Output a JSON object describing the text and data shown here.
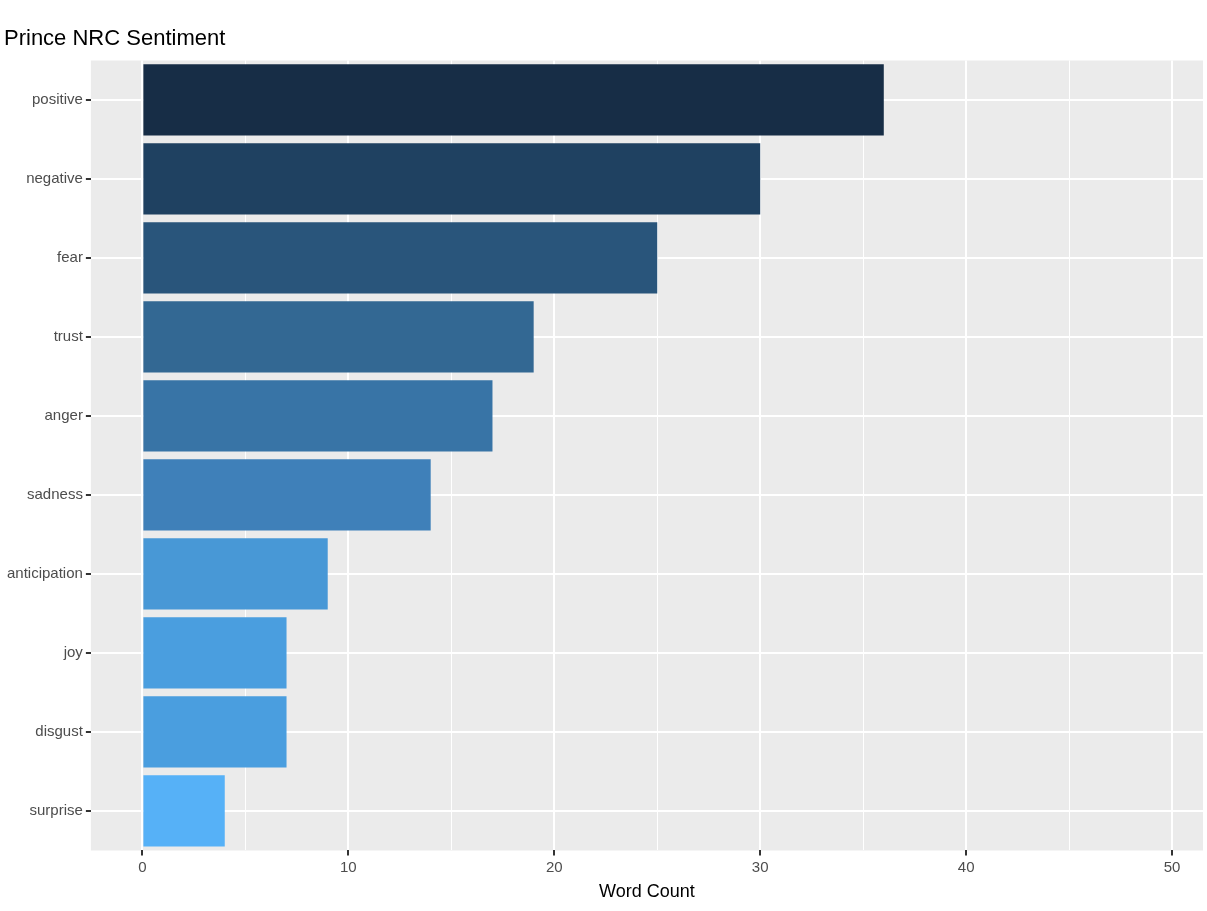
{
  "chart_data": {
    "type": "bar",
    "orientation": "horizontal",
    "title": "Prince NRC Sentiment",
    "xlabel": "Word Count",
    "categories": [
      "positive",
      "negative",
      "fear",
      "trust",
      "anger",
      "sadness",
      "anticipation",
      "joy",
      "disgust",
      "surprise"
    ],
    "values": [
      36,
      30,
      25,
      19,
      17,
      14,
      9,
      7,
      7,
      4
    ],
    "colors": [
      "#172d46",
      "#1f4161",
      "#29557b",
      "#336893",
      "#3874a6",
      "#3f80b9",
      "#4898d6",
      "#4a9edf",
      "#4a9edf",
      "#56b1f7"
    ],
    "xlim": [
      -2.5,
      51.5
    ],
    "xticks": [
      0,
      {
        "value": 5,
        "label": null
      },
      10,
      {
        "value": 15,
        "label": null
      },
      20,
      {
        "value": 25,
        "label": null
      },
      30,
      {
        "value": 35,
        "label": null
      },
      40,
      {
        "value": 45,
        "label": null
      },
      50
    ],
    "grid": true,
    "legend": false
  }
}
